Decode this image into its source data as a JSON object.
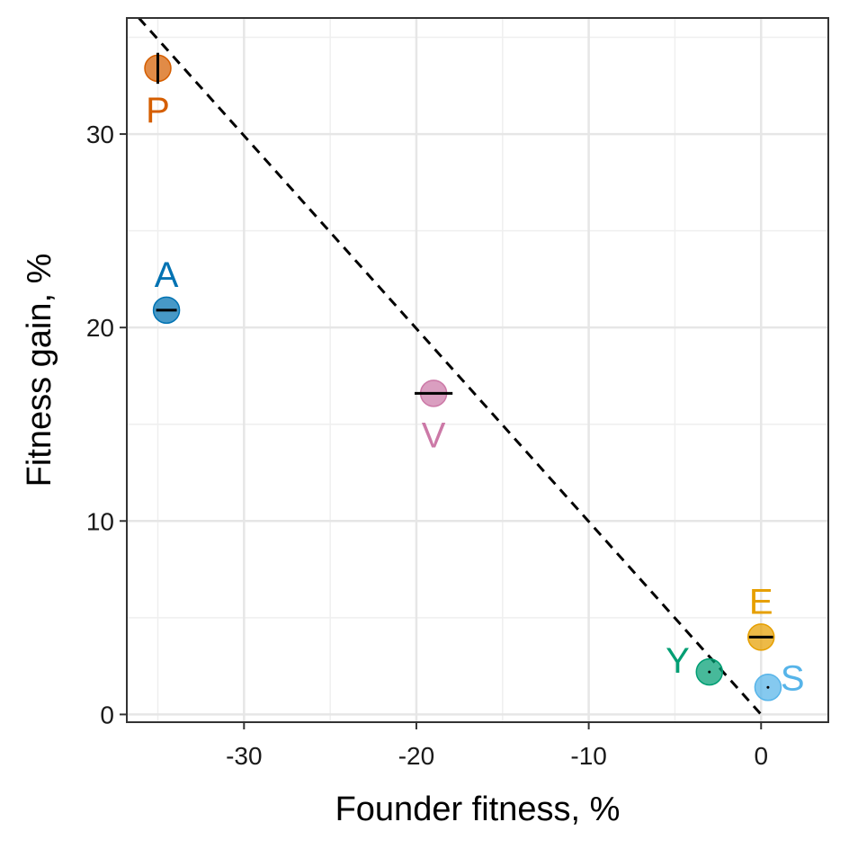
{
  "chart_data": {
    "type": "scatter",
    "title": "",
    "xlabel": "Founder fitness, %",
    "ylabel": "Fitness gain, %",
    "xlim": [
      -36.8,
      3.9
    ],
    "ylim": [
      -0.4,
      36.0
    ],
    "x_ticks": [
      -30,
      -20,
      -10,
      0
    ],
    "y_ticks": [
      0,
      10,
      20,
      30
    ],
    "x_tick_labels": [
      "-30",
      "-20",
      "-10",
      "0"
    ],
    "y_tick_labels": [
      "0",
      "10",
      "20",
      "30"
    ],
    "grid": true,
    "legend": "none",
    "reference_line": {
      "style": "dashed",
      "x1": -36.1,
      "y1": 36.0,
      "x2": 0.0,
      "y2": 0.0
    },
    "points": [
      {
        "label": "P",
        "x": -35.0,
        "y": 33.4,
        "x_err": 0.0,
        "y_err": 0.8,
        "color": "#D55E00",
        "label_pos": "below"
      },
      {
        "label": "A",
        "x": -34.5,
        "y": 20.9,
        "x_err": 0.6,
        "y_err": 0.0,
        "color": "#0072B2",
        "label_pos": "above"
      },
      {
        "label": "V",
        "x": -19.0,
        "y": 16.6,
        "x_err": 1.1,
        "y_err": 0.0,
        "color": "#CC79A7",
        "label_pos": "below"
      },
      {
        "label": "E",
        "x": 0.0,
        "y": 4.0,
        "x_err": 0.7,
        "y_err": 0.0,
        "color": "#E69F00",
        "label_pos": "above"
      },
      {
        "label": "Y",
        "x": -3.0,
        "y": 2.2,
        "x_err": 0.0,
        "y_err": 0.0,
        "color": "#009E73",
        "label_pos": "left"
      },
      {
        "label": "S",
        "x": 0.4,
        "y": 1.4,
        "x_err": 0.0,
        "y_err": 0.0,
        "color": "#56B4E9",
        "label_pos": "right"
      }
    ]
  }
}
